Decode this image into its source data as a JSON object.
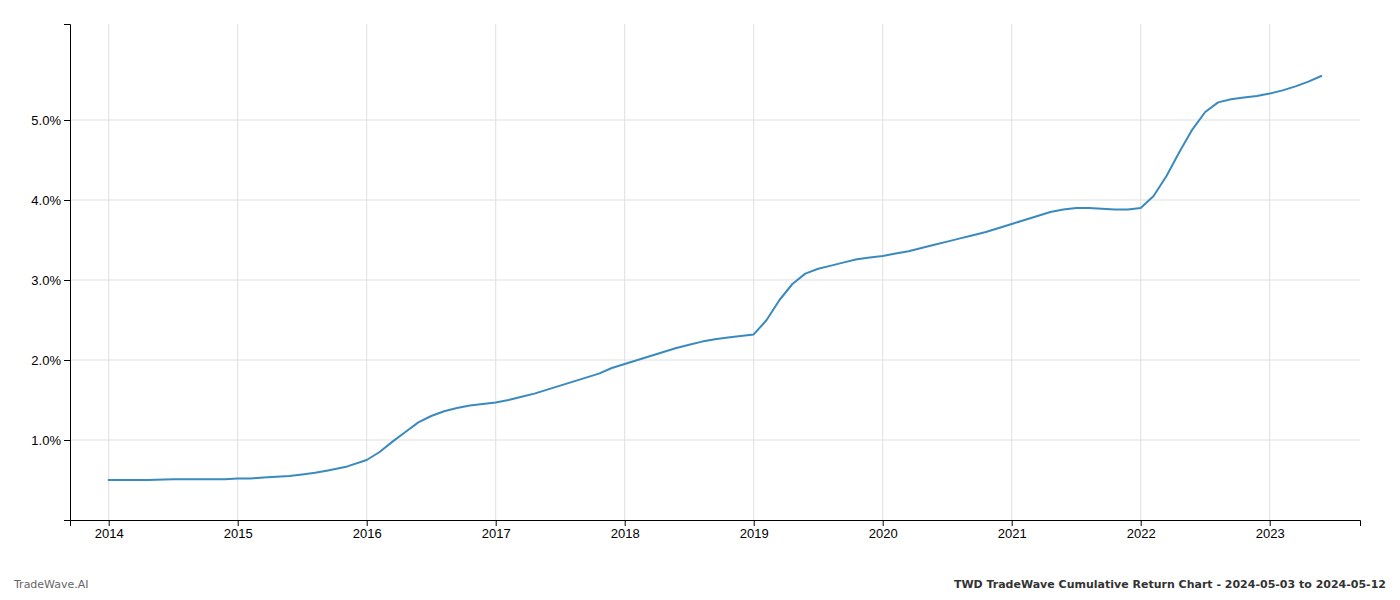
{
  "chart_data": {
    "type": "line",
    "x": [
      2014.0,
      2014.15,
      2014.3,
      2014.5,
      2014.7,
      2014.9,
      2015.0,
      2015.1,
      2015.2,
      2015.3,
      2015.4,
      2015.5,
      2015.6,
      2015.7,
      2015.85,
      2016.0,
      2016.1,
      2016.2,
      2016.3,
      2016.4,
      2016.5,
      2016.6,
      2016.7,
      2016.8,
      2016.9,
      2017.0,
      2017.1,
      2017.2,
      2017.3,
      2017.4,
      2017.5,
      2017.6,
      2017.7,
      2017.8,
      2017.9,
      2018.0,
      2018.1,
      2018.2,
      2018.3,
      2018.4,
      2018.5,
      2018.6,
      2018.7,
      2018.8,
      2018.9,
      2019.0,
      2019.1,
      2019.2,
      2019.3,
      2019.4,
      2019.5,
      2019.6,
      2019.7,
      2019.8,
      2019.9,
      2020.0,
      2020.1,
      2020.2,
      2020.3,
      2020.4,
      2020.5,
      2020.6,
      2020.7,
      2020.8,
      2020.9,
      2021.0,
      2021.1,
      2021.2,
      2021.3,
      2021.4,
      2021.5,
      2021.6,
      2021.7,
      2021.8,
      2021.9,
      2022.0,
      2022.1,
      2022.2,
      2022.3,
      2022.4,
      2022.5,
      2022.6,
      2022.7,
      2022.8,
      2022.9,
      2023.0,
      2023.1,
      2023.2,
      2023.3,
      2023.4
    ],
    "values": [
      0.5,
      0.5,
      0.5,
      0.51,
      0.51,
      0.51,
      0.52,
      0.52,
      0.53,
      0.54,
      0.55,
      0.57,
      0.59,
      0.62,
      0.67,
      0.75,
      0.85,
      0.98,
      1.1,
      1.22,
      1.3,
      1.36,
      1.4,
      1.43,
      1.45,
      1.47,
      1.5,
      1.54,
      1.58,
      1.63,
      1.68,
      1.73,
      1.78,
      1.83,
      1.9,
      1.95,
      2.0,
      2.05,
      2.1,
      2.15,
      2.19,
      2.23,
      2.26,
      2.28,
      2.3,
      2.32,
      2.5,
      2.75,
      2.95,
      3.08,
      3.14,
      3.18,
      3.22,
      3.26,
      3.28,
      3.3,
      3.33,
      3.36,
      3.4,
      3.44,
      3.48,
      3.52,
      3.56,
      3.6,
      3.65,
      3.7,
      3.75,
      3.8,
      3.85,
      3.88,
      3.9,
      3.9,
      3.89,
      3.88,
      3.88,
      3.9,
      4.05,
      4.3,
      4.6,
      4.88,
      5.1,
      5.22,
      5.26,
      5.28,
      5.3,
      5.33,
      5.37,
      5.42,
      5.48,
      5.55
    ],
    "color": "#3a8abf",
    "xlim": [
      2013.7,
      2023.7
    ],
    "ylim": [
      0.0,
      6.2
    ],
    "xticks": [
      2014,
      2015,
      2016,
      2017,
      2018,
      2019,
      2020,
      2021,
      2022,
      2023
    ],
    "yticks": [
      {
        "value": 1.0,
        "label": "1.0%"
      },
      {
        "value": 2.0,
        "label": "2.0%"
      },
      {
        "value": 3.0,
        "label": "3.0%"
      },
      {
        "value": 4.0,
        "label": "4.0%"
      },
      {
        "value": 5.0,
        "label": "5.0%"
      }
    ],
    "grid": true,
    "annotations": [
      "TradeWave.AI",
      "TWD TradeWave Cumulative Return Chart - 2024-05-03 to 2024-05-12"
    ]
  }
}
